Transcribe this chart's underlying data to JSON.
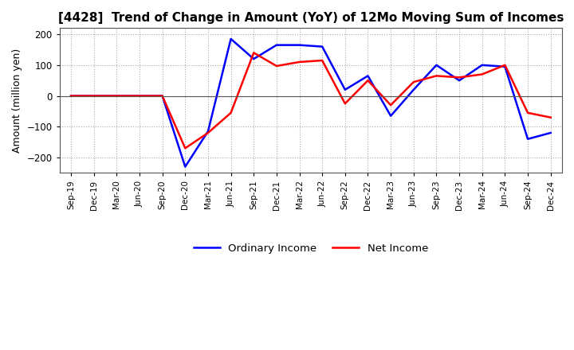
{
  "title": "[4428]  Trend of Change in Amount (YoY) of 12Mo Moving Sum of Incomes",
  "ylabel": "Amount (million yen)",
  "ylim": [
    -250,
    220
  ],
  "yticks": [
    -200,
    -100,
    0,
    100,
    200
  ],
  "x_labels": [
    "Sep-19",
    "Dec-19",
    "Mar-20",
    "Jun-20",
    "Sep-20",
    "Dec-20",
    "Mar-21",
    "Jun-21",
    "Sep-21",
    "Dec-21",
    "Mar-22",
    "Jun-22",
    "Sep-22",
    "Dec-22",
    "Mar-23",
    "Jun-23",
    "Sep-23",
    "Dec-23",
    "Mar-24",
    "Jun-24",
    "Sep-24",
    "Dec-24"
  ],
  "ordinary_income": [
    0,
    0,
    0,
    0,
    0,
    -230,
    -115,
    185,
    120,
    165,
    165,
    160,
    20,
    65,
    -65,
    20,
    100,
    50,
    100,
    95,
    -140,
    -120
  ],
  "net_income": [
    0,
    0,
    0,
    0,
    0,
    -170,
    -120,
    -55,
    140,
    97,
    110,
    115,
    -25,
    50,
    -30,
    45,
    65,
    60,
    70,
    100,
    -55,
    -70
  ],
  "ordinary_color": "#0000ff",
  "net_color": "#ff0000",
  "line_width": 1.8,
  "legend_labels": [
    "Ordinary Income",
    "Net Income"
  ],
  "background_color": "#ffffff",
  "grid_color": "#aaaaaa",
  "grid_style": ":"
}
